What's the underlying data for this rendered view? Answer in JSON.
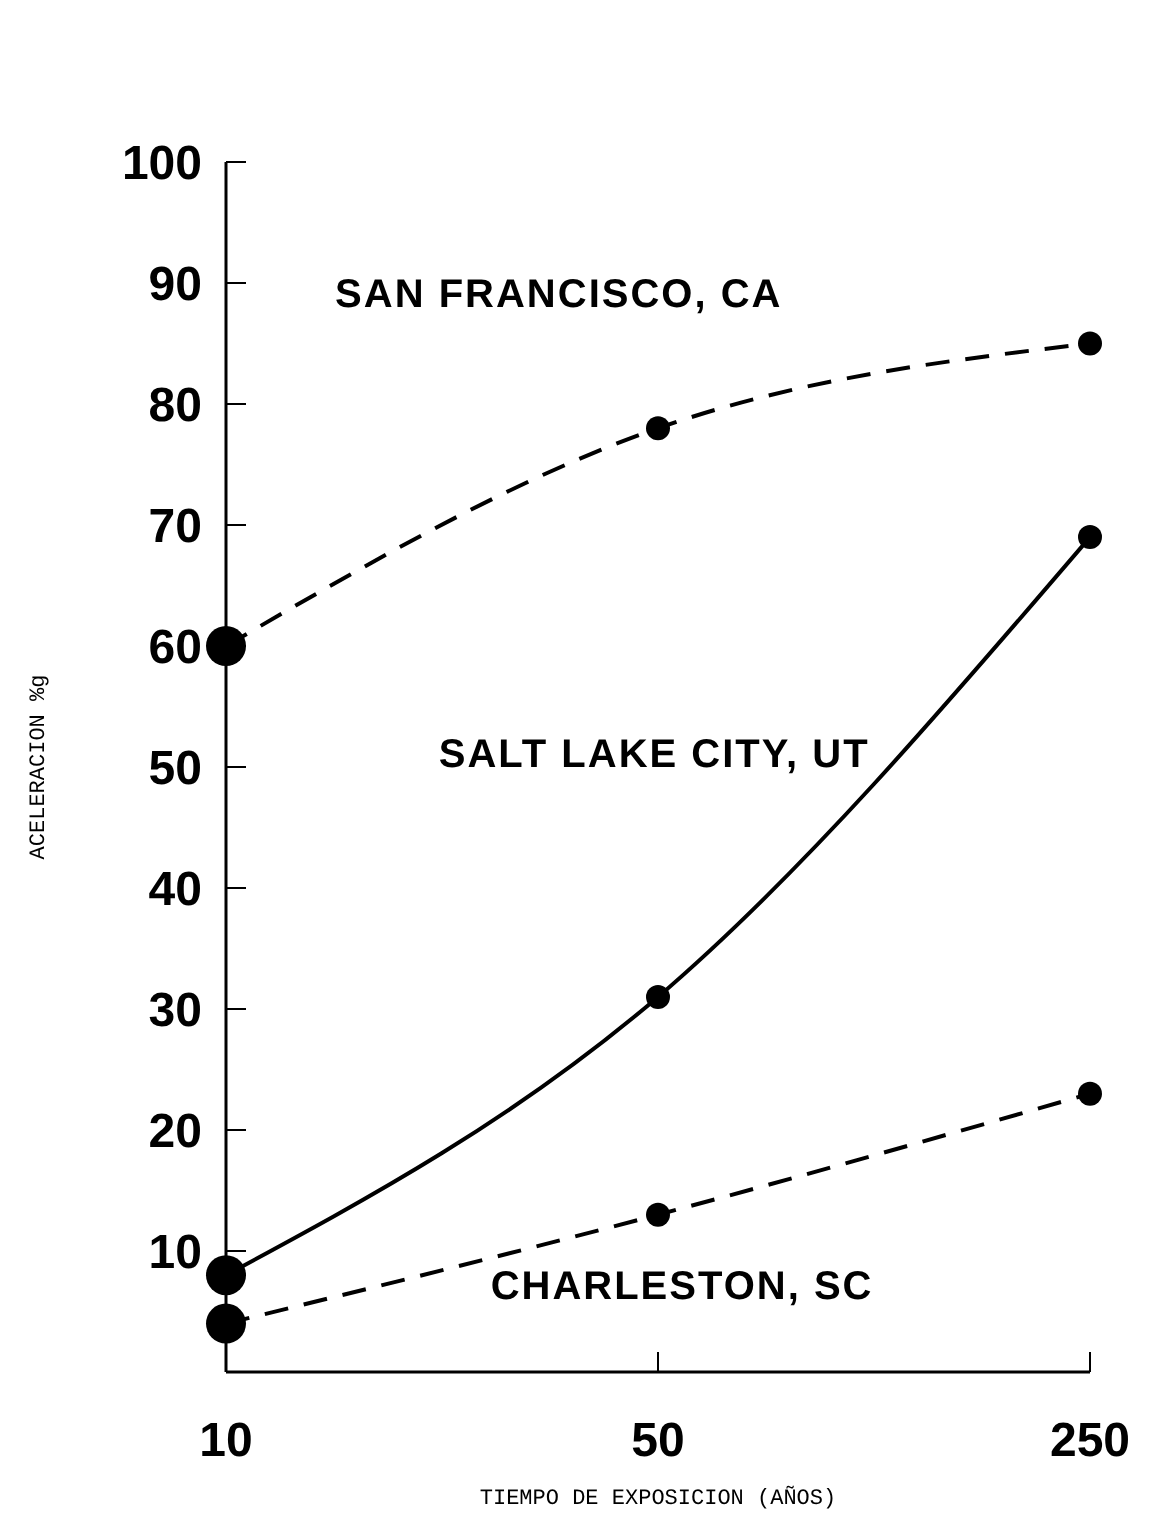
{
  "chart_data": {
    "type": "line",
    "xlabel": "TIEMPO DE EXPOSICION (AÑOS)",
    "ylabel": "ACELERACION %g",
    "categories": [
      "10",
      "50",
      "250"
    ],
    "ylim": [
      0,
      100
    ],
    "yticks": [
      10,
      20,
      30,
      40,
      50,
      60,
      70,
      80,
      90,
      100
    ],
    "marker": "circle",
    "grid": false,
    "series": [
      {
        "name": "SAN FRANCISCO, CA",
        "color": "#000000",
        "line_style": "dashed",
        "values": [
          60,
          78,
          85
        ]
      },
      {
        "name": "SALT LAKE CITY, UT",
        "color": "#000000",
        "line_style": "solid",
        "values": [
          8,
          31,
          69
        ]
      },
      {
        "name": "CHARLESTON, SC",
        "color": "#000000",
        "line_style": "dashed",
        "values": [
          4,
          13,
          23
        ]
      }
    ]
  }
}
